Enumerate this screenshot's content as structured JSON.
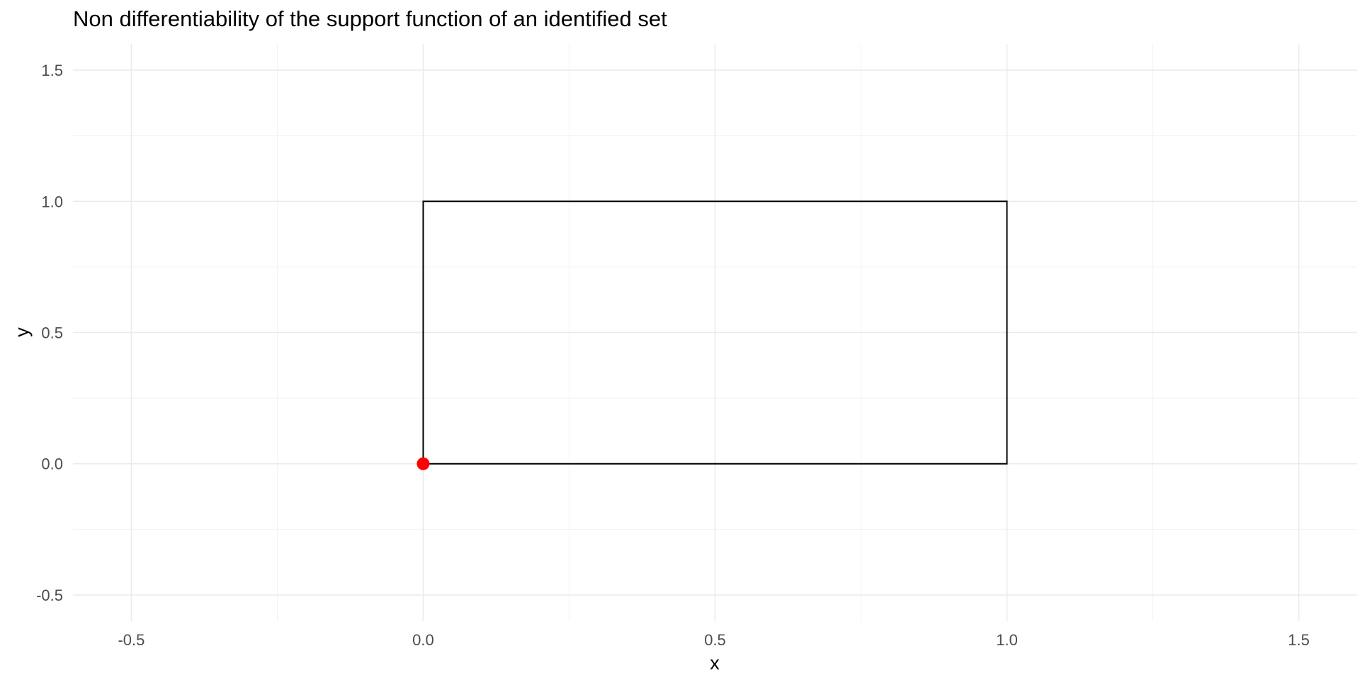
{
  "chart_data": {
    "type": "line",
    "title": "Non differentiability of the support function of an identified set",
    "xlabel": "x",
    "ylabel": "y",
    "xlim": [
      -0.6,
      1.6
    ],
    "ylim": [
      -0.6,
      1.6
    ],
    "x_ticks": [
      -0.5,
      0.0,
      0.5,
      1.0,
      1.5
    ],
    "y_ticks": [
      -0.5,
      0.0,
      0.5,
      1.0,
      1.5
    ],
    "x_tick_labels": [
      "-0.5",
      "0.0",
      "0.5",
      "1.0",
      "1.5"
    ],
    "y_tick_labels": [
      "-0.5",
      "0.0",
      "0.5",
      "1.0",
      "1.5"
    ],
    "grid": true,
    "legend": "none",
    "series": [
      {
        "type": "polygon",
        "color": "#000000",
        "points": [
          [
            0,
            0
          ],
          [
            1,
            0
          ],
          [
            1,
            1
          ],
          [
            0,
            1
          ],
          [
            0,
            0
          ]
        ]
      },
      {
        "type": "point",
        "color": "#ff0000",
        "points": [
          [
            0,
            0
          ]
        ]
      }
    ]
  }
}
